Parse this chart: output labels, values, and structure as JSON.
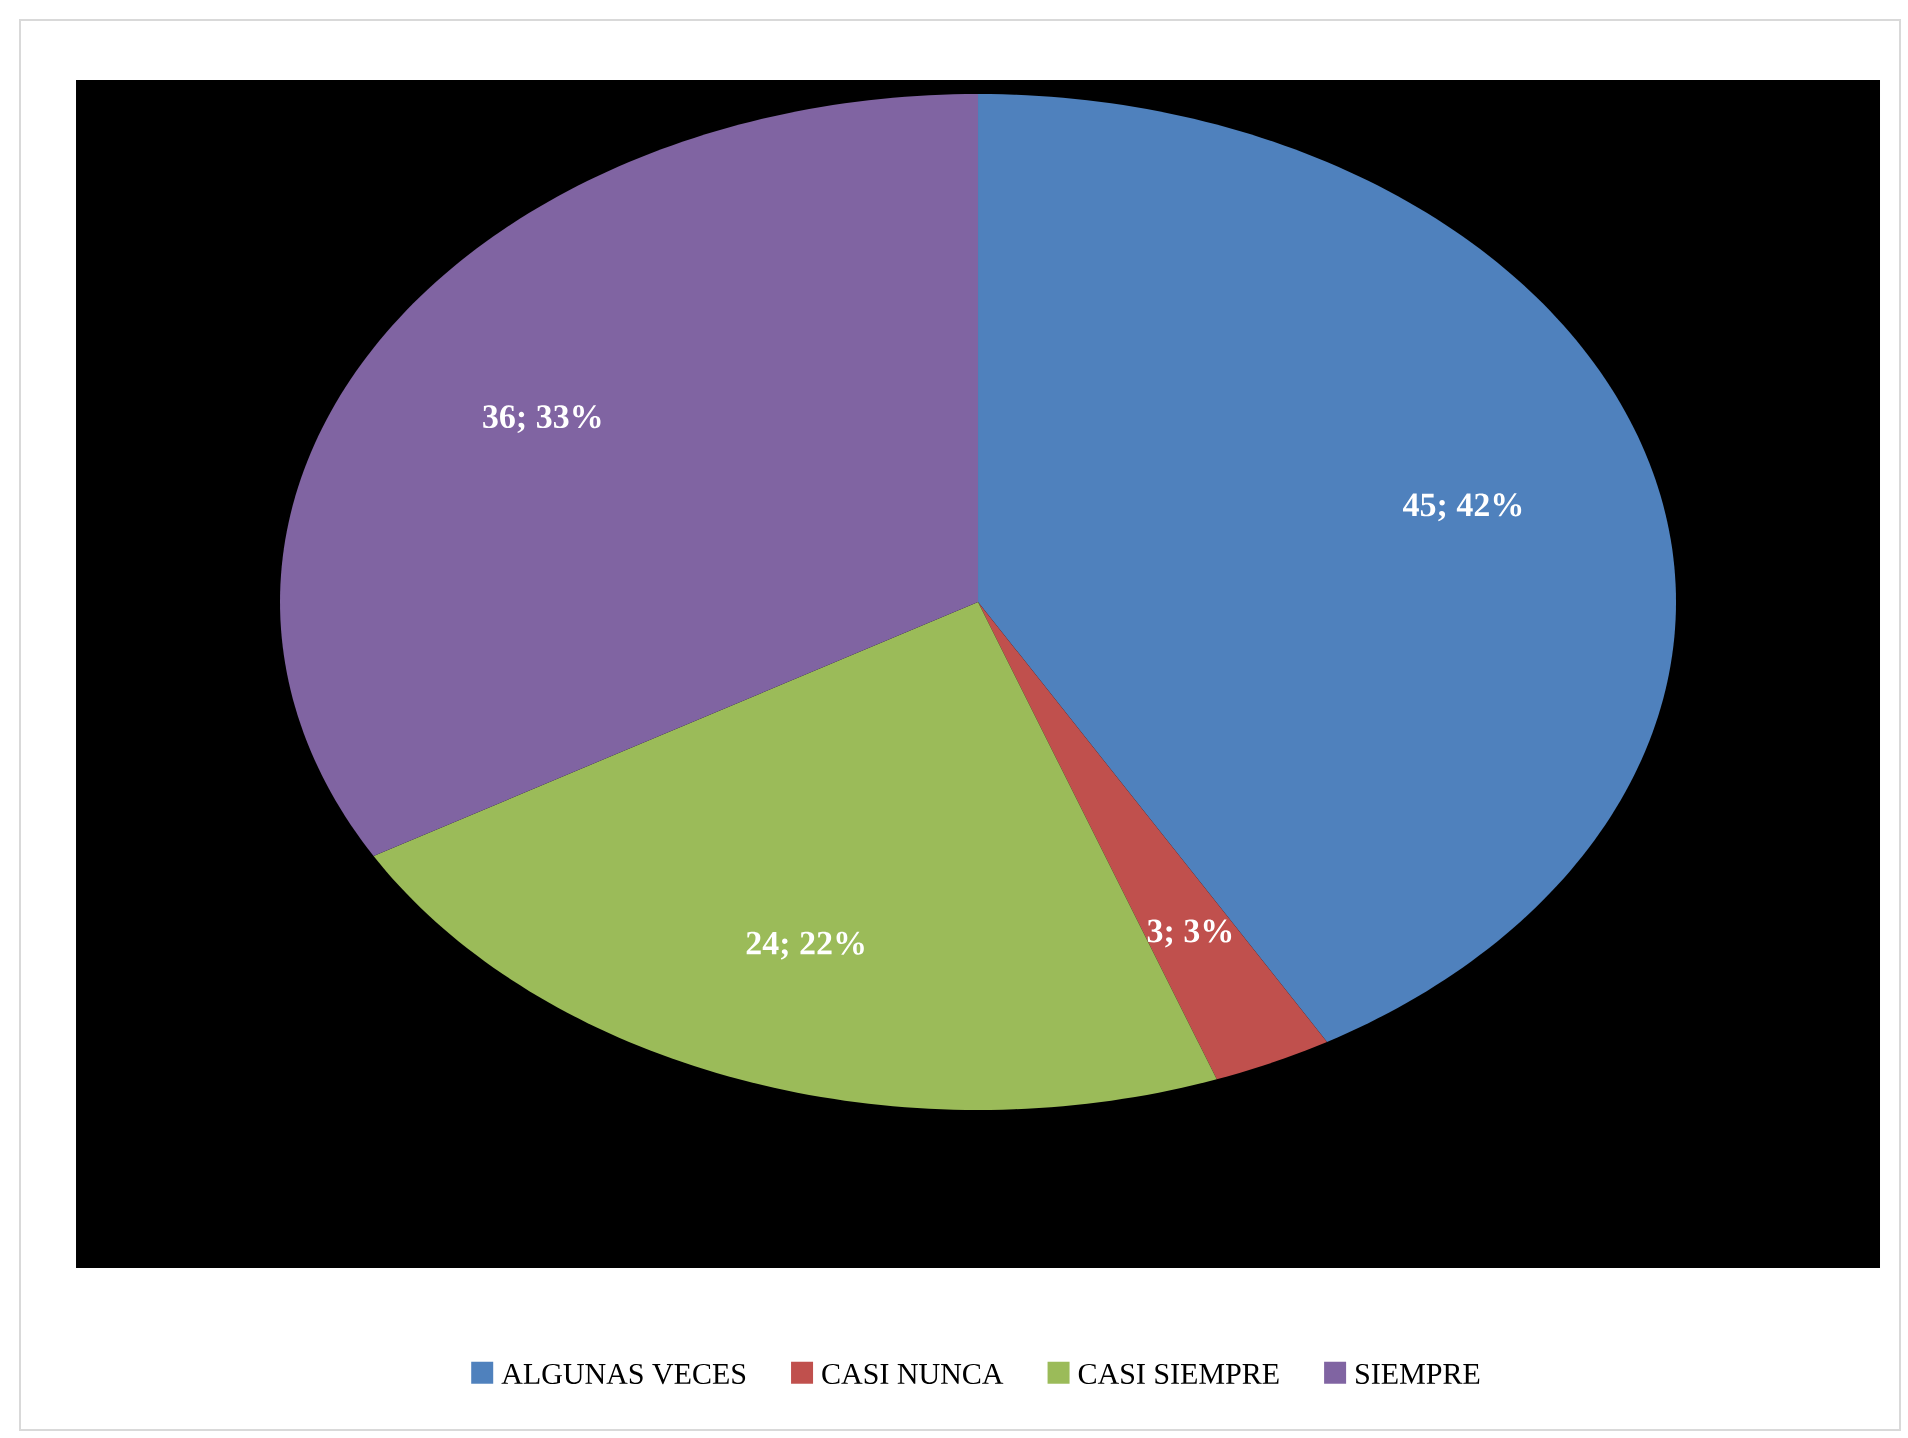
{
  "chart_data": {
    "type": "pie",
    "categories": [
      "ALGUNAS VECES",
      "CASI NUNCA",
      "CASI SIEMPRE",
      "SIEMPRE"
    ],
    "values": [
      45,
      3,
      24,
      36
    ],
    "colors": [
      "#4f81bd",
      "#c0504d",
      "#9bbb59",
      "#8064a2"
    ],
    "value_labels": [
      "45; 42%",
      "3; 3%",
      "24; 22%",
      "36; 33%"
    ],
    "legend": "bottom"
  }
}
